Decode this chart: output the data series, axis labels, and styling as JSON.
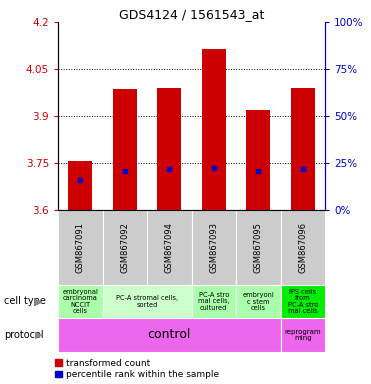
{
  "title": "GDS4124 / 1561543_at",
  "samples": [
    "GSM867091",
    "GSM867092",
    "GSM867094",
    "GSM867093",
    "GSM867095",
    "GSM867096"
  ],
  "bar_values": [
    3.755,
    3.985,
    3.99,
    4.115,
    3.92,
    3.99
  ],
  "bar_bottom": 3.6,
  "percentile_values": [
    3.695,
    3.725,
    3.73,
    3.735,
    3.725,
    3.73
  ],
  "ylim": [
    3.6,
    4.2
  ],
  "yticks_left": [
    3.6,
    3.75,
    3.9,
    4.05,
    4.2
  ],
  "yticks_right_vals": [
    0,
    25,
    50,
    75,
    100
  ],
  "yticks_right_pos": [
    3.6,
    3.75,
    3.9,
    4.05,
    4.2
  ],
  "bar_color": "#cc0000",
  "percentile_color": "#0000cc",
  "cell_types": [
    {
      "text": "embryonal\ncarcinoma\nNCCIT\ncells",
      "bg": "#aaffaa",
      "span": [
        0,
        1
      ]
    },
    {
      "text": "PC-A stromal cells,\nsorted",
      "bg": "#ccffcc",
      "span": [
        1,
        3
      ]
    },
    {
      "text": "PC-A stro\nmal cells,\ncultured",
      "bg": "#aaffaa",
      "span": [
        3,
        4
      ]
    },
    {
      "text": "embryoni\nc stem\ncells",
      "bg": "#aaffaa",
      "span": [
        4,
        5
      ]
    },
    {
      "text": "IPS cells\nfrom\nPC-A stro\nmal cells",
      "bg": "#00ee00",
      "span": [
        5,
        6
      ]
    }
  ],
  "protocol_control_text": "control",
  "protocol_reprog_text": "reprogram\nming",
  "protocol_control_bg": "#ee66ee",
  "protocol_reprog_bg": "#ee66ee",
  "left_axis_color": "#cc0000",
  "right_axis_color": "#0000cc",
  "legend_red_label": "transformed count",
  "legend_blue_label": "percentile rank within the sample",
  "cell_type_label": "cell type",
  "protocol_label": "protocol",
  "sample_bg_color": "#cccccc",
  "bar_width": 0.55
}
